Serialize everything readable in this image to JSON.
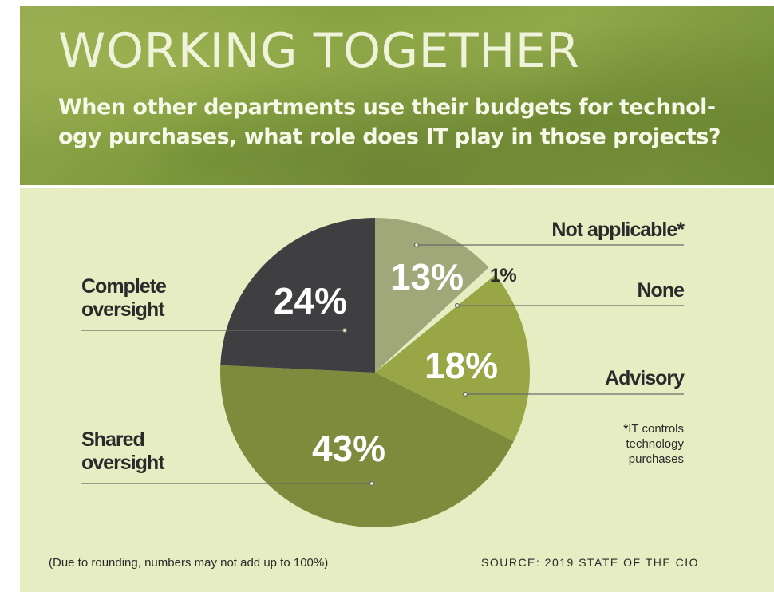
{
  "header": {
    "title": "WORKING TOGETHER",
    "question": "When other departments use their budgets for technol-ogy purchases, what role does IT play in those projects?"
  },
  "chart_data": {
    "type": "pie",
    "title": "WORKING TOGETHER",
    "subtitle": "When other departments use their budgets for technology purchases, what role does IT play in those projects?",
    "slices": [
      {
        "name": "Not applicable*",
        "value": 13,
        "label": "13%",
        "color": "#a0a779"
      },
      {
        "name": "None",
        "value": 1,
        "label": "1%",
        "color": "#e6edc2"
      },
      {
        "name": "Advisory",
        "value": 18,
        "label": "18%",
        "color": "#98a646"
      },
      {
        "name": "Shared oversight",
        "value": 43,
        "label": "43%",
        "color": "#7e8a3c"
      },
      {
        "name": "Complete oversight",
        "value": 24,
        "label": "24%",
        "color": "#3f3f42"
      }
    ]
  },
  "labels": {
    "not_applicable": "Not applicable*",
    "none": "None",
    "advisory": "Advisory",
    "complete_line1": "Complete",
    "complete_line2": "oversight",
    "shared_line1": "Shared",
    "shared_line2": "oversight"
  },
  "note": {
    "star": "*",
    "line1": "IT controls",
    "line2": "technology",
    "line3": "purchases"
  },
  "footer": {
    "rounding_note": "(Due to rounding, numbers may not add up to 100%)",
    "source": "SOURCE: 2019 STATE OF THE CIO"
  }
}
